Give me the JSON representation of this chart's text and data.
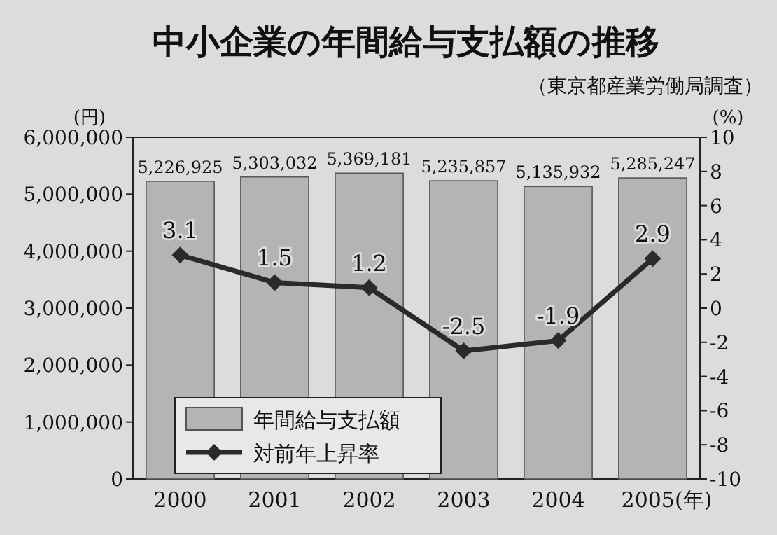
{
  "chart_data": {
    "type": "bar",
    "title": "中小企業の年間給与支払額の推移",
    "subtitle": "（東京都産業労働局調査）",
    "ylabel": "(円)",
    "y2label": "(%)",
    "categories": [
      "2000",
      "2001",
      "2002",
      "2003",
      "2004",
      "2005(年)"
    ],
    "series": [
      {
        "name": "年間給与支払額",
        "color": "#b4b4b4",
        "values": [
          5226925,
          5303032,
          5369181,
          5235857,
          5135932,
          5285247
        ],
        "value_labels": [
          "5,226,925",
          "5,303,032",
          "5,369,181",
          "5,235,857",
          "5,135,932",
          "5,285,247"
        ]
      },
      {
        "name": "対前年上昇率",
        "type": "line",
        "axis": "y2",
        "color": "#2a2a2a",
        "marker": "diamond",
        "values": [
          3.1,
          1.5,
          1.2,
          -2.5,
          -1.9,
          2.9
        ],
        "value_labels": [
          "3.1",
          "1.5",
          "1.2",
          "-2.5",
          "-1.9",
          "2.9"
        ]
      }
    ],
    "ylim": [
      0,
      6000000
    ],
    "yticks": [
      {
        "value": 0,
        "label": "0"
      },
      {
        "value": 1000000,
        "label": "1,000,000"
      },
      {
        "value": 2000000,
        "label": "2,000,000"
      },
      {
        "value": 3000000,
        "label": "3,000,000"
      },
      {
        "value": 4000000,
        "label": "4,000,000"
      },
      {
        "value": 5000000,
        "label": "5,000,000"
      },
      {
        "value": 6000000,
        "label": "6,000,000"
      }
    ],
    "y2lim": [
      -10,
      10
    ],
    "y2ticks": [
      -10,
      -8,
      -6,
      -4,
      -2,
      0,
      2,
      4,
      6,
      8,
      10
    ],
    "legend": "bottom left"
  }
}
